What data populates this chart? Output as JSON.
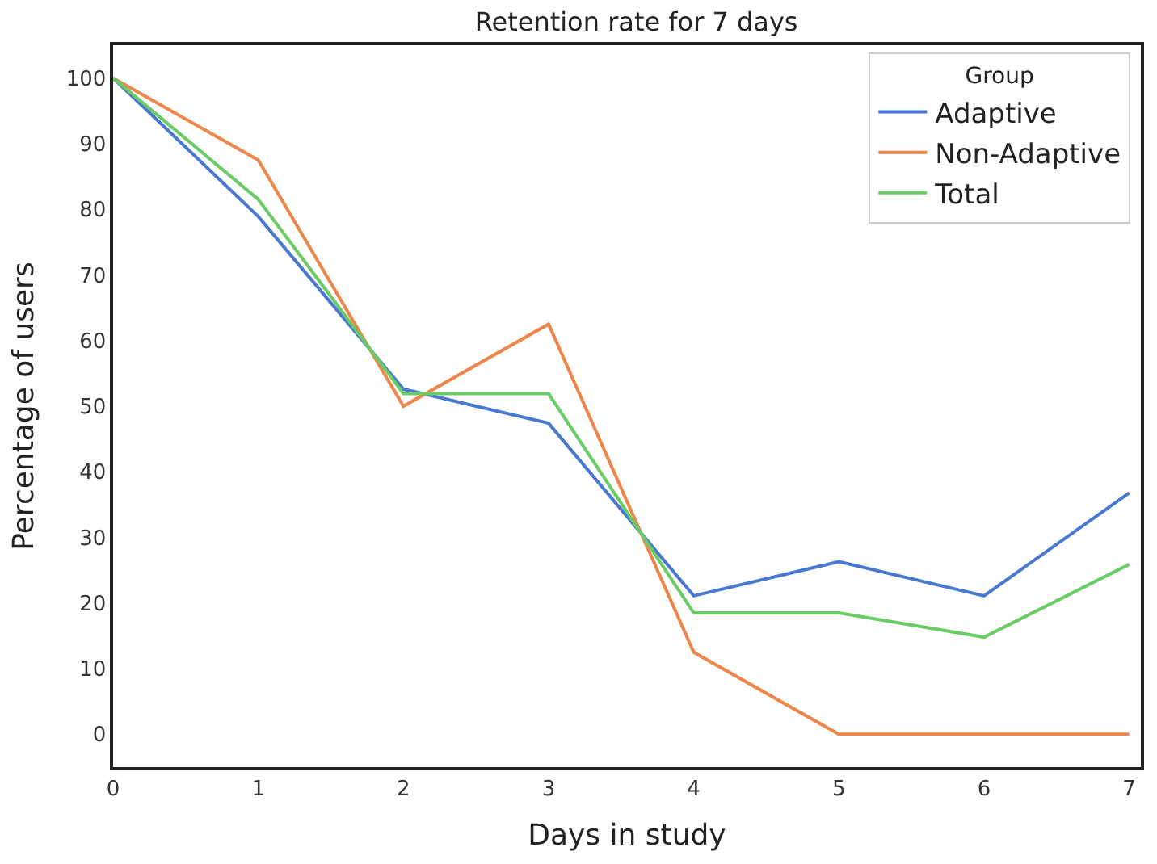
{
  "chart_data": {
    "type": "line",
    "title": "Retention rate for 7 days",
    "xlabel": "Days in study",
    "ylabel": "Percentage of users",
    "legend_title": "Group",
    "x": [
      0,
      1,
      2,
      3,
      4,
      5,
      6,
      7
    ],
    "series": [
      {
        "name": "Adaptive",
        "color": "#4878d0",
        "values": [
          100,
          78.9,
          52.6,
          47.4,
          21.1,
          26.3,
          21.1,
          36.8
        ]
      },
      {
        "name": "Non-Adaptive",
        "color": "#ee854a",
        "values": [
          100,
          87.5,
          50,
          62.5,
          12.5,
          0,
          0,
          0
        ]
      },
      {
        "name": "Total",
        "color": "#6acc64",
        "values": [
          100,
          81.5,
          51.9,
          51.9,
          18.5,
          18.5,
          14.8,
          25.9
        ]
      }
    ],
    "xlim": [
      0,
      7.08
    ],
    "xticks": [
      0,
      1,
      2,
      3,
      4,
      5,
      6,
      7
    ],
    "ylim": [
      -5,
      105
    ],
    "yticks": [
      0,
      10,
      20,
      30,
      40,
      50,
      60,
      70,
      80,
      90,
      100
    ],
    "grid": false,
    "legend": "top right",
    "marker": "none",
    "line_style": "solid"
  }
}
